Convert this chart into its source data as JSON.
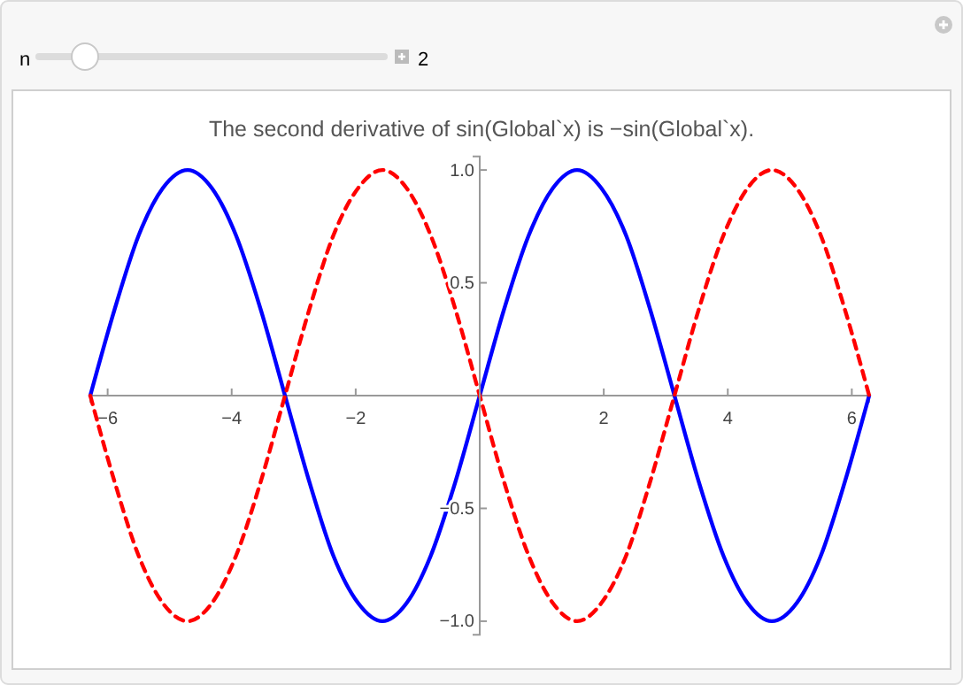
{
  "chart_data": {
    "type": "line",
    "title": "The second derivative of sin(Global`x) is −sin(Global`x).",
    "annotations": [
      "n",
      "2"
    ],
    "x": [
      -6.28,
      -5.89,
      -5.5,
      -5.11,
      -4.71,
      -4.32,
      -3.93,
      -3.53,
      -3.14,
      -2.75,
      -2.36,
      -1.96,
      -1.57,
      -1.18,
      -0.79,
      -0.39,
      0,
      0.39,
      0.79,
      1.18,
      1.57,
      1.96,
      2.36,
      2.75,
      3.14,
      3.53,
      3.93,
      4.32,
      4.71,
      5.11,
      5.5,
      5.89,
      6.28
    ],
    "series": [
      {
        "color": "#0000ff",
        "line_style": "solid",
        "values": [
          0,
          0.38,
          0.71,
          0.92,
          1,
          0.92,
          0.71,
          0.38,
          0,
          -0.38,
          -0.71,
          -0.92,
          -1,
          -0.92,
          -0.71,
          -0.38,
          0,
          0.38,
          0.71,
          0.92,
          1,
          0.92,
          0.71,
          0.38,
          0,
          -0.38,
          -0.71,
          -0.92,
          -1,
          -0.92,
          -0.71,
          -0.38,
          0
        ]
      },
      {
        "color": "#ff0000",
        "line_style": "dashed",
        "values": [
          0,
          -0.38,
          -0.71,
          -0.92,
          -1,
          -0.92,
          -0.71,
          -0.38,
          0,
          0.38,
          0.71,
          0.92,
          1,
          0.92,
          0.71,
          0.38,
          0,
          -0.38,
          -0.71,
          -0.92,
          -1,
          -0.92,
          -0.71,
          -0.38,
          0,
          0.38,
          0.71,
          0.92,
          1,
          0.92,
          0.71,
          0.38,
          0
        ]
      }
    ],
    "xlim": [
      -6.28,
      6.28
    ],
    "ylim": [
      -1.06,
      1.06
    ],
    "xticks": [
      -6,
      -4,
      -2,
      2,
      4,
      6
    ],
    "yticks": [
      {
        "value": -1,
        "label": "−1.0"
      },
      {
        "value": -0.5,
        "label": "−0.5"
      },
      {
        "value": 0.5,
        "label": "0.5"
      },
      {
        "value": 1,
        "label": "1.0"
      }
    ]
  }
}
